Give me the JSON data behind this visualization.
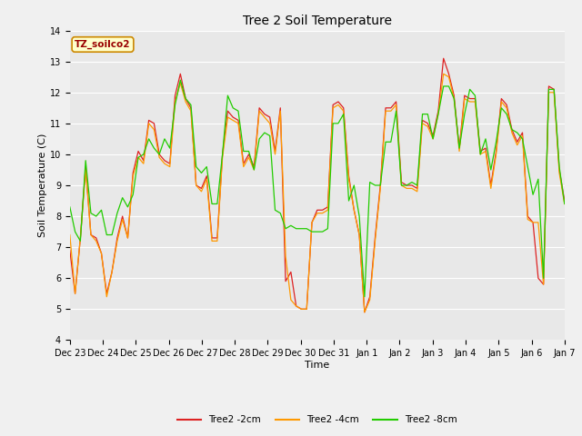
{
  "title": "Tree 2 Soil Temperature",
  "xlabel": "Time",
  "ylabel": "Soil Temperature (C)",
  "ylim": [
    4.0,
    14.0
  ],
  "yticks": [
    4.0,
    5.0,
    6.0,
    7.0,
    8.0,
    9.0,
    10.0,
    11.0,
    12.0,
    13.0,
    14.0
  ],
  "x_labels": [
    "Dec 23",
    "Dec 24",
    "Dec 25",
    "Dec 26",
    "Dec 27",
    "Dec 28",
    "Dec 29",
    "Dec 30",
    "Dec 31",
    "Jan 1",
    "Jan 2",
    "Jan 3",
    "Jan 4",
    "Jan 5",
    "Jan 6",
    "Jan 7"
  ],
  "annotation_text": "TZ_soilco2",
  "annotation_bg": "#ffffcc",
  "annotation_border": "#cc8800",
  "line_colors": [
    "#dd2222",
    "#ff9900",
    "#22cc00"
  ],
  "line_labels": [
    "Tree2 -2cm",
    "Tree2 -4cm",
    "Tree2 -8cm"
  ],
  "fig_bg": "#f0f0f0",
  "plot_bg": "#e8e8e8",
  "grid_color": "#ffffff",
  "series_2cm": [
    6.9,
    5.5,
    7.3,
    9.6,
    7.4,
    7.3,
    6.8,
    5.5,
    6.2,
    7.3,
    8.0,
    7.3,
    9.4,
    10.1,
    9.8,
    11.1,
    11.0,
    10.0,
    9.8,
    9.7,
    11.9,
    12.6,
    11.8,
    11.5,
    9.0,
    8.9,
    9.3,
    7.3,
    7.3,
    10.0,
    11.4,
    11.2,
    11.1,
    9.7,
    10.0,
    9.6,
    11.5,
    11.3,
    11.2,
    10.1,
    11.5,
    5.9,
    6.2,
    5.1,
    5.0,
    5.0,
    7.8,
    8.2,
    8.2,
    8.3,
    11.6,
    11.7,
    11.5,
    9.3,
    8.2,
    7.4,
    4.9,
    5.4,
    7.3,
    9.0,
    11.5,
    11.5,
    11.7,
    9.1,
    9.0,
    9.0,
    8.9,
    11.1,
    11.0,
    10.6,
    11.4,
    13.1,
    12.6,
    11.9,
    10.2,
    11.9,
    11.8,
    11.8,
    10.1,
    10.2,
    9.0,
    10.1,
    11.8,
    11.6,
    10.8,
    10.4,
    10.7,
    8.0,
    7.8,
    6.0,
    5.8,
    12.2,
    12.1,
    9.5,
    8.5
  ],
  "series_4cm": [
    7.4,
    5.5,
    7.3,
    9.5,
    7.4,
    7.2,
    6.8,
    5.4,
    6.2,
    7.2,
    7.9,
    7.3,
    9.3,
    9.9,
    9.7,
    11.0,
    10.8,
    9.9,
    9.7,
    9.6,
    11.7,
    12.3,
    11.7,
    11.4,
    9.0,
    8.8,
    9.2,
    7.2,
    7.2,
    9.9,
    11.2,
    11.1,
    11.0,
    9.6,
    9.9,
    9.5,
    11.4,
    11.2,
    11.0,
    10.0,
    11.4,
    6.7,
    5.3,
    5.1,
    5.0,
    5.0,
    7.8,
    8.1,
    8.1,
    8.2,
    11.5,
    11.6,
    11.4,
    9.2,
    8.2,
    7.4,
    4.9,
    5.3,
    7.2,
    8.9,
    11.4,
    11.4,
    11.6,
    9.0,
    8.9,
    8.9,
    8.8,
    11.0,
    10.9,
    10.5,
    11.3,
    12.6,
    12.5,
    11.8,
    10.1,
    11.8,
    11.7,
    11.7,
    10.0,
    10.1,
    8.9,
    10.0,
    11.7,
    11.5,
    10.7,
    10.3,
    10.6,
    7.9,
    7.8,
    7.8,
    5.8,
    12.0,
    12.0,
    9.4,
    8.4
  ],
  "series_8cm": [
    8.3,
    7.5,
    7.2,
    9.8,
    8.1,
    8.0,
    8.2,
    7.4,
    7.4,
    8.1,
    8.6,
    8.3,
    8.7,
    9.9,
    10.0,
    10.5,
    10.2,
    10.0,
    10.5,
    10.2,
    11.6,
    12.4,
    11.8,
    11.6,
    9.6,
    9.4,
    9.6,
    8.4,
    8.4,
    10.0,
    11.9,
    11.5,
    11.4,
    10.1,
    10.1,
    9.5,
    10.5,
    10.7,
    10.6,
    8.2,
    8.1,
    7.6,
    7.7,
    7.6,
    7.6,
    7.6,
    7.5,
    7.5,
    7.5,
    7.6,
    11.0,
    11.0,
    11.3,
    8.5,
    9.0,
    8.0,
    5.4,
    9.1,
    9.0,
    9.0,
    10.4,
    10.4,
    11.4,
    9.0,
    9.0,
    9.1,
    9.0,
    11.3,
    11.3,
    10.5,
    11.3,
    12.2,
    12.2,
    11.8,
    10.2,
    11.3,
    12.1,
    11.9,
    10.0,
    10.5,
    9.5,
    10.4,
    11.5,
    11.3,
    10.8,
    10.7,
    10.5,
    9.6,
    8.7,
    9.2,
    6.0,
    12.1,
    12.1,
    9.6,
    8.4
  ]
}
